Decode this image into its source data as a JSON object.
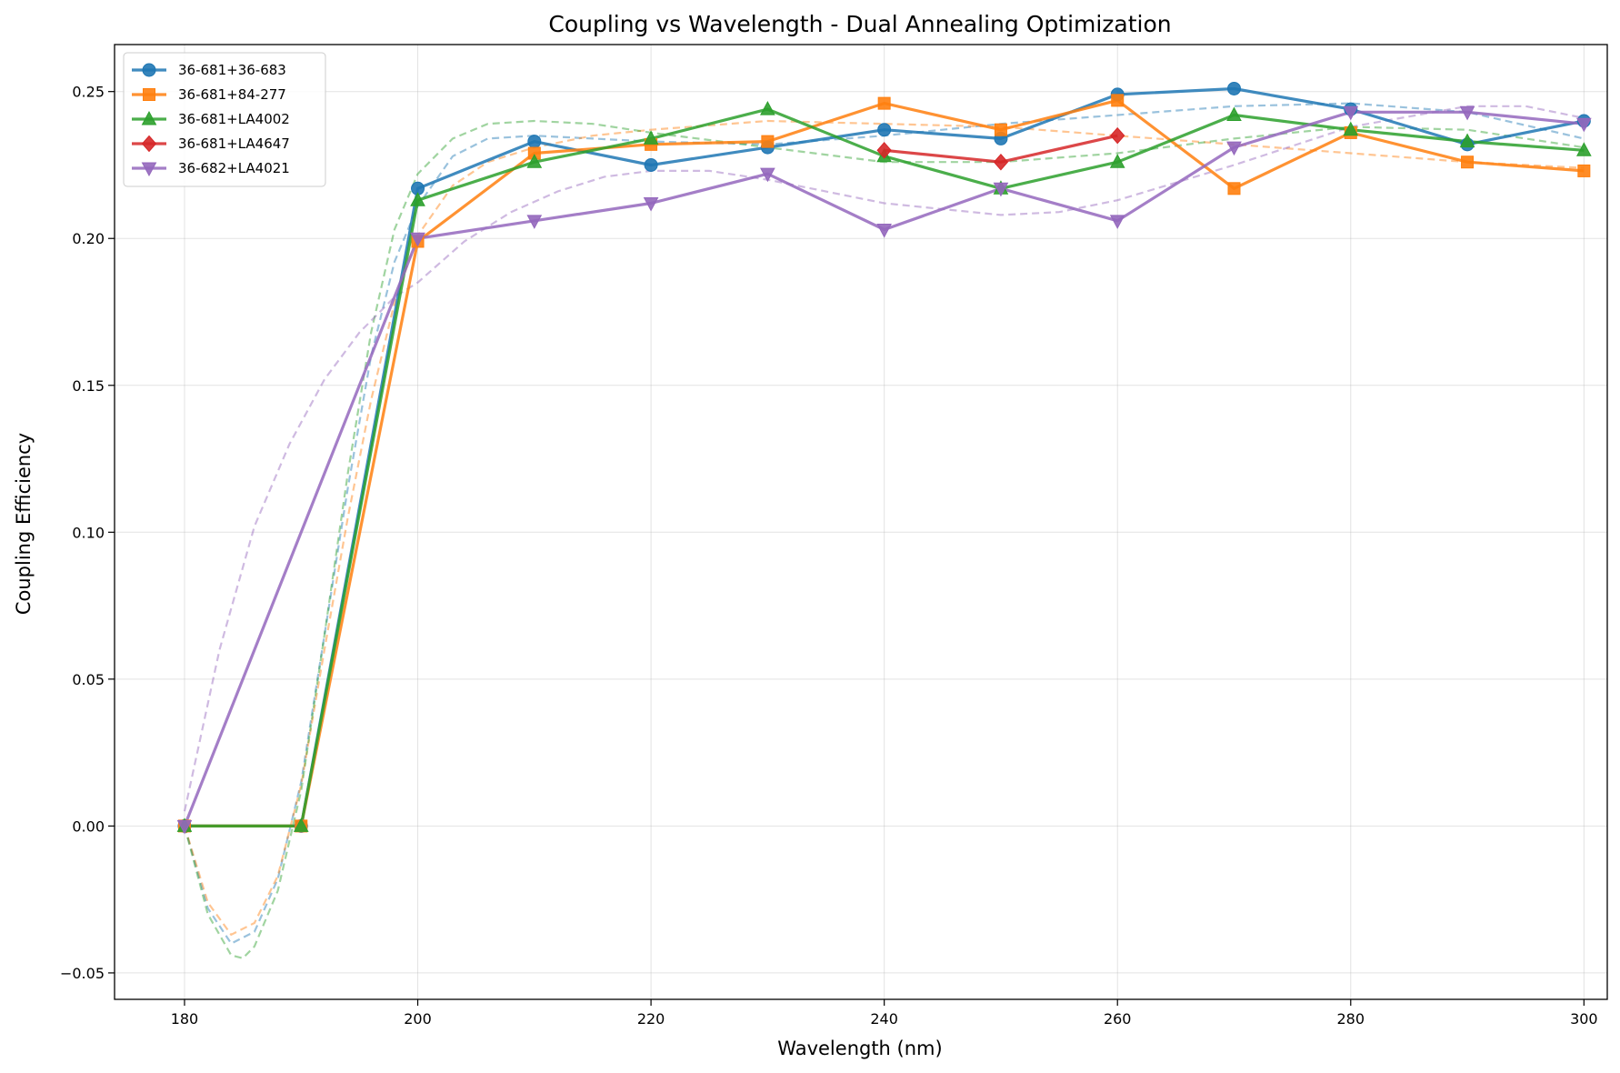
{
  "chart_data": {
    "type": "line",
    "title": "Coupling vs Wavelength - Dual Annealing Optimization",
    "xlabel": "Wavelength (nm)",
    "ylabel": "Coupling Efficiency",
    "xlim": [
      174,
      302
    ],
    "ylim": [
      -0.059,
      0.266
    ],
    "xticks": [
      180,
      200,
      220,
      240,
      260,
      280,
      300
    ],
    "yticks": [
      -0.05,
      0.0,
      0.05,
      0.1,
      0.15,
      0.2,
      0.25
    ],
    "ytick_labels": [
      "−0.05",
      "0.00",
      "0.05",
      "0.10",
      "0.15",
      "0.20",
      "0.25"
    ],
    "grid": true,
    "legend_position": "top-left",
    "x": [
      180,
      190,
      200,
      210,
      220,
      230,
      240,
      250,
      260,
      270,
      280,
      290,
      300
    ],
    "series": [
      {
        "name": "36-681+36-683",
        "color": "#1f77b4",
        "marker": "circle",
        "values": [
          0.0,
          0.0,
          0.217,
          0.233,
          0.225,
          0.231,
          0.237,
          0.234,
          0.249,
          0.251,
          0.244,
          0.232,
          0.24
        ],
        "fit": [
          [
            180,
            0.0
          ],
          [
            182,
            -0.028
          ],
          [
            184,
            -0.04
          ],
          [
            186,
            -0.036
          ],
          [
            188,
            -0.018
          ],
          [
            190,
            0.015
          ],
          [
            192,
            0.065
          ],
          [
            194,
            0.115
          ],
          [
            196,
            0.16
          ],
          [
            198,
            0.192
          ],
          [
            200,
            0.211
          ],
          [
            203,
            0.228
          ],
          [
            206,
            0.234
          ],
          [
            210,
            0.235
          ],
          [
            215,
            0.234
          ],
          [
            220,
            0.233
          ],
          [
            230,
            0.232
          ],
          [
            240,
            0.235
          ],
          [
            250,
            0.239
          ],
          [
            260,
            0.242
          ],
          [
            270,
            0.245
          ],
          [
            280,
            0.246
          ],
          [
            290,
            0.243
          ],
          [
            300,
            0.234
          ]
        ]
      },
      {
        "name": "36-681+84-277",
        "color": "#ff7f0e",
        "marker": "square",
        "values": [
          0.0,
          0.0,
          0.199,
          0.229,
          0.232,
          0.233,
          0.246,
          0.237,
          0.247,
          0.217,
          0.236,
          0.226,
          0.223
        ],
        "fit": [
          [
            180,
            0.0
          ],
          [
            182,
            -0.026
          ],
          [
            184,
            -0.037
          ],
          [
            186,
            -0.033
          ],
          [
            188,
            -0.017
          ],
          [
            190,
            0.014
          ],
          [
            192,
            0.06
          ],
          [
            194,
            0.105
          ],
          [
            196,
            0.145
          ],
          [
            198,
            0.178
          ],
          [
            200,
            0.201
          ],
          [
            203,
            0.218
          ],
          [
            206,
            0.226
          ],
          [
            210,
            0.231
          ],
          [
            215,
            0.235
          ],
          [
            220,
            0.237
          ],
          [
            230,
            0.24
          ],
          [
            240,
            0.239
          ],
          [
            250,
            0.238
          ],
          [
            260,
            0.235
          ],
          [
            270,
            0.232
          ],
          [
            280,
            0.229
          ],
          [
            290,
            0.226
          ],
          [
            300,
            0.224
          ]
        ]
      },
      {
        "name": "36-681+LA4002",
        "color": "#2ca02c",
        "marker": "triangle-up",
        "values": [
          0.0,
          0.0,
          0.213,
          0.226,
          0.234,
          0.244,
          0.228,
          0.217,
          0.226,
          0.242,
          0.237,
          0.233,
          0.23
        ],
        "fit": [
          [
            180,
            0.0
          ],
          [
            182,
            -0.03
          ],
          [
            184,
            -0.044
          ],
          [
            185,
            -0.045
          ],
          [
            186,
            -0.041
          ],
          [
            188,
            -0.022
          ],
          [
            190,
            0.012
          ],
          [
            192,
            0.065
          ],
          [
            194,
            0.12
          ],
          [
            196,
            0.168
          ],
          [
            198,
            0.203
          ],
          [
            200,
            0.222
          ],
          [
            203,
            0.234
          ],
          [
            206,
            0.239
          ],
          [
            210,
            0.24
          ],
          [
            215,
            0.239
          ],
          [
            220,
            0.236
          ],
          [
            230,
            0.231
          ],
          [
            240,
            0.226
          ],
          [
            250,
            0.226
          ],
          [
            260,
            0.229
          ],
          [
            270,
            0.234
          ],
          [
            280,
            0.238
          ],
          [
            290,
            0.237
          ],
          [
            300,
            0.231
          ]
        ]
      },
      {
        "name": "36-681+LA4647",
        "color": "#d62728",
        "marker": "diamond",
        "values": [
          null,
          null,
          null,
          null,
          null,
          null,
          0.23,
          0.226,
          0.235,
          null,
          null,
          null,
          null
        ],
        "fit": []
      },
      {
        "name": "36-682+LA4021",
        "color": "#9467bd",
        "marker": "triangle-down",
        "values": [
          0.0,
          null,
          0.2,
          0.206,
          0.212,
          0.222,
          0.203,
          0.217,
          0.206,
          0.231,
          0.243,
          0.243,
          0.239
        ],
        "fit": [
          [
            180,
            0.005
          ],
          [
            183,
            0.06
          ],
          [
            186,
            0.102
          ],
          [
            189,
            0.13
          ],
          [
            192,
            0.152
          ],
          [
            195,
            0.168
          ],
          [
            198,
            0.18
          ],
          [
            200,
            0.185
          ],
          [
            204,
            0.199
          ],
          [
            208,
            0.209
          ],
          [
            212,
            0.216
          ],
          [
            216,
            0.221
          ],
          [
            220,
            0.223
          ],
          [
            225,
            0.223
          ],
          [
            230,
            0.22
          ],
          [
            240,
            0.212
          ],
          [
            250,
            0.208
          ],
          [
            255,
            0.209
          ],
          [
            260,
            0.213
          ],
          [
            270,
            0.225
          ],
          [
            280,
            0.238
          ],
          [
            290,
            0.245
          ],
          [
            295,
            0.245
          ],
          [
            300,
            0.241
          ]
        ]
      }
    ]
  }
}
